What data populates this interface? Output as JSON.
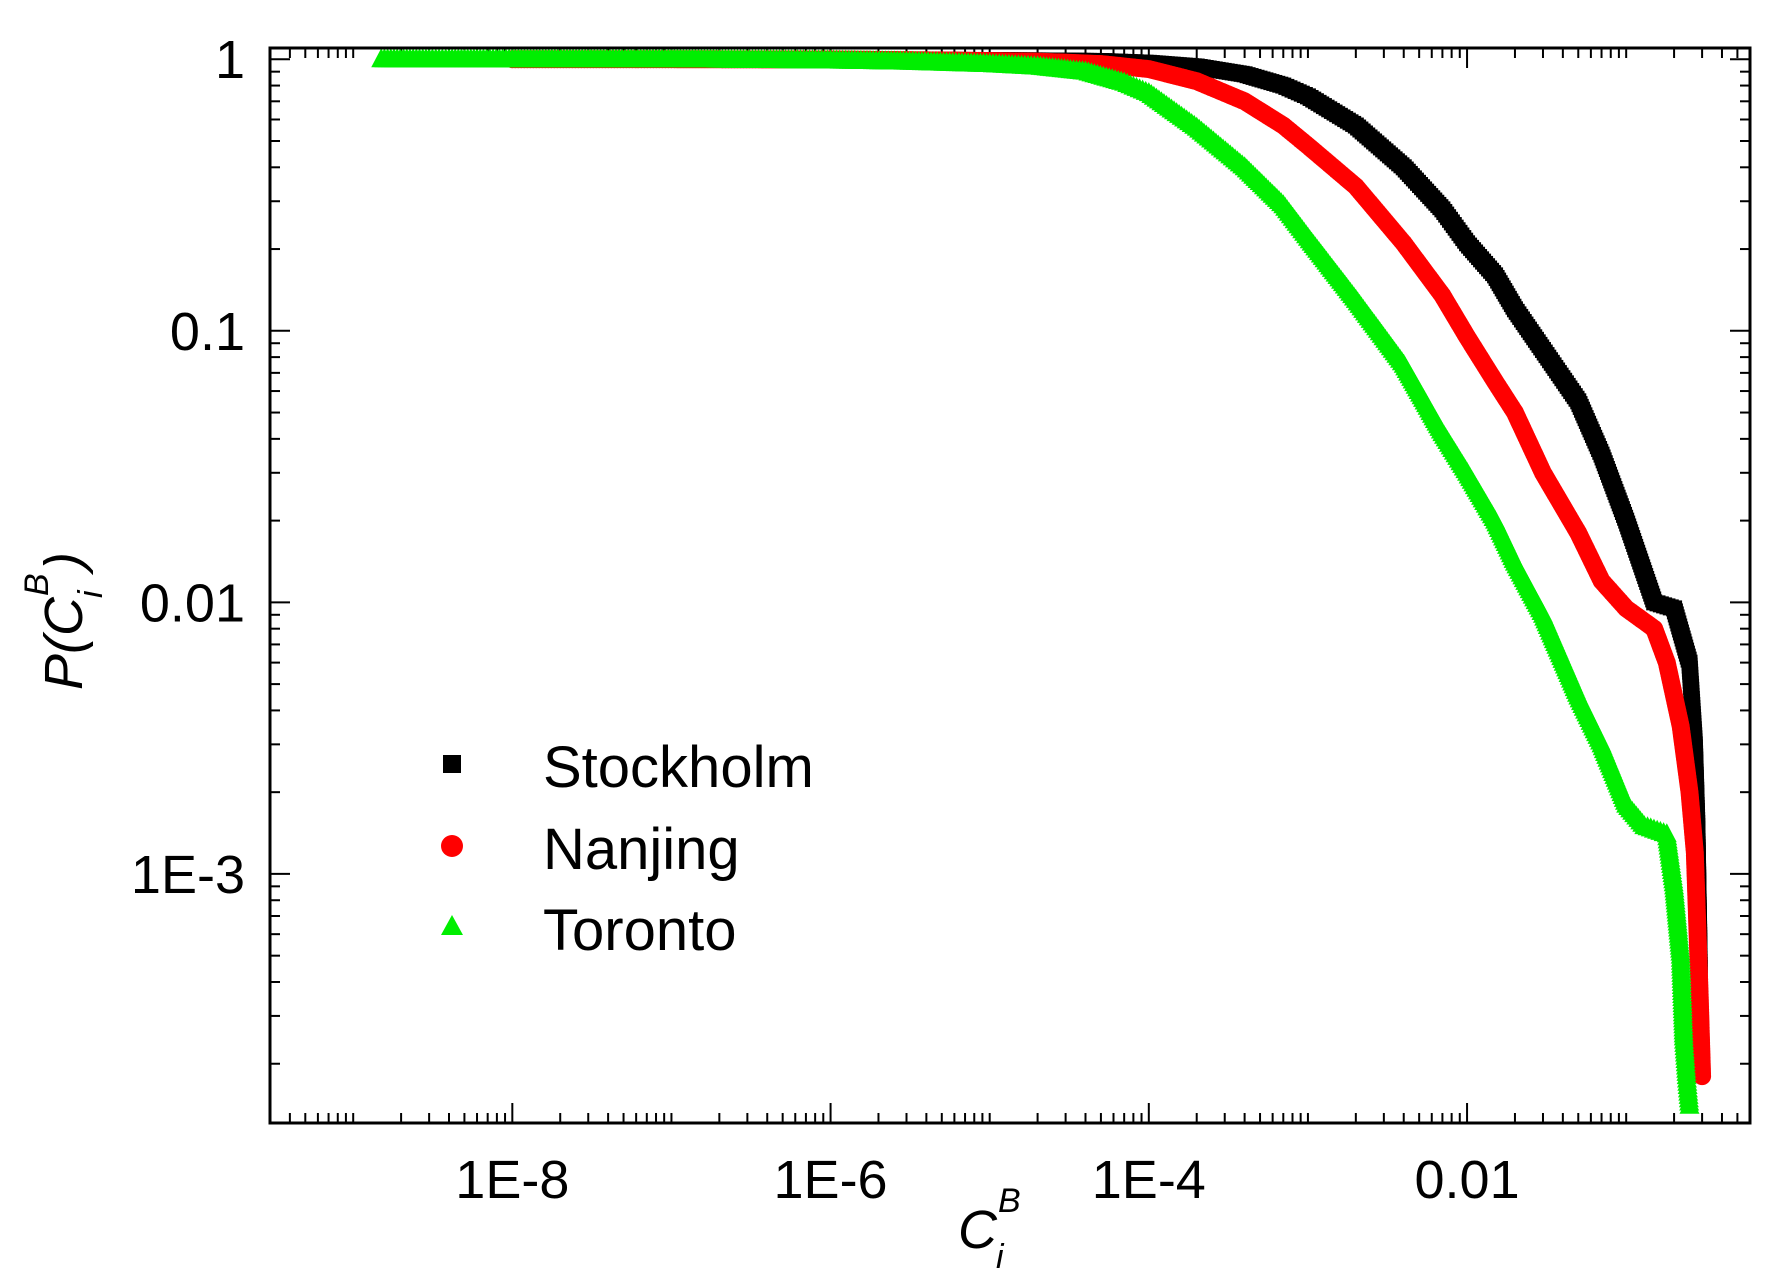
{
  "chart_data": {
    "type": "scatter",
    "xscale": "log",
    "yscale": "log",
    "xlim": [
      3e-10,
      0.6
    ],
    "ylim": [
      0.000121,
      1.1
    ],
    "xticks": [
      {
        "value": 1e-08,
        "label": "1E-8"
      },
      {
        "value": 1e-06,
        "label": "1E-6"
      },
      {
        "value": 0.0001,
        "label": "1E-4"
      },
      {
        "value": 0.01,
        "label": "0.01"
      }
    ],
    "yticks": [
      {
        "value": 1,
        "label": "1"
      },
      {
        "value": 0.1,
        "label": "0.1"
      },
      {
        "value": 0.01,
        "label": "0.01"
      },
      {
        "value": 0.001,
        "label": "1E-3"
      }
    ],
    "xlabel": {
      "main": "C",
      "sup": "B",
      "sub": "i"
    },
    "ylabel": {
      "prefix": "P(",
      "main": "C",
      "sup": "B",
      "sub": "i",
      "suffix": ")"
    },
    "legend_position": "bottom-left",
    "grid": false,
    "series": [
      {
        "name": "Stockholm",
        "color": "#000000",
        "marker": "square",
        "points": [
          [
            4e-08,
            1.0
          ],
          [
            2e-07,
            1.0
          ],
          [
            1e-06,
            0.999
          ],
          [
            5e-06,
            0.995
          ],
          [
            2e-05,
            0.99
          ],
          [
            5e-05,
            0.985
          ],
          [
            0.0001,
            0.97
          ],
          [
            0.0002,
            0.94
          ],
          [
            0.0004,
            0.88
          ],
          [
            0.0007,
            0.8
          ],
          [
            0.001,
            0.73
          ],
          [
            0.002,
            0.57
          ],
          [
            0.004,
            0.4
          ],
          [
            0.007,
            0.28
          ],
          [
            0.01,
            0.21
          ],
          [
            0.015,
            0.16
          ],
          [
            0.02,
            0.12
          ],
          [
            0.03,
            0.085
          ],
          [
            0.05,
            0.055
          ],
          [
            0.07,
            0.035
          ],
          [
            0.1,
            0.02
          ],
          [
            0.15,
            0.01
          ],
          [
            0.2,
            0.0095
          ],
          [
            0.25,
            0.006
          ],
          [
            0.27,
            0.003
          ],
          [
            0.28,
            0.0015
          ],
          [
            0.29,
            0.00045
          ]
        ]
      },
      {
        "name": "Nanjing",
        "color": "#ff0000",
        "marker": "circle",
        "points": [
          [
            1e-08,
            1.0
          ],
          [
            1e-07,
            1.0
          ],
          [
            1e-06,
            0.998
          ],
          [
            5e-06,
            0.99
          ],
          [
            2e-05,
            0.98
          ],
          [
            5e-05,
            0.96
          ],
          [
            0.0001,
            0.92
          ],
          [
            0.0002,
            0.83
          ],
          [
            0.0004,
            0.7
          ],
          [
            0.0007,
            0.57
          ],
          [
            0.001,
            0.48
          ],
          [
            0.002,
            0.34
          ],
          [
            0.004,
            0.21
          ],
          [
            0.007,
            0.135
          ],
          [
            0.01,
            0.095
          ],
          [
            0.015,
            0.065
          ],
          [
            0.02,
            0.05
          ],
          [
            0.03,
            0.03
          ],
          [
            0.05,
            0.018
          ],
          [
            0.07,
            0.012
          ],
          [
            0.1,
            0.0095
          ],
          [
            0.15,
            0.008
          ],
          [
            0.18,
            0.006
          ],
          [
            0.22,
            0.0035
          ],
          [
            0.25,
            0.002
          ],
          [
            0.27,
            0.0012
          ],
          [
            0.29,
            0.00035
          ],
          [
            0.3,
            0.00018
          ]
        ]
      },
      {
        "name": "Toronto",
        "color": "#00ee00",
        "marker": "triangle",
        "points": [
          [
            1.5e-09,
            1.0
          ],
          [
            3e-09,
            1.0
          ],
          [
            4e-09,
            1.0
          ],
          [
            6e-09,
            1.0
          ],
          [
            1e-08,
            1.0
          ],
          [
            3e-08,
            1.0
          ],
          [
            1e-07,
            1.0
          ],
          [
            1e-06,
            0.99
          ],
          [
            3e-06,
            0.98
          ],
          [
            1e-05,
            0.96
          ],
          [
            2e-05,
            0.94
          ],
          [
            4e-05,
            0.9
          ],
          [
            7e-05,
            0.82
          ],
          [
            0.0001,
            0.75
          ],
          [
            0.0002,
            0.56
          ],
          [
            0.0004,
            0.4
          ],
          [
            0.0007,
            0.29
          ],
          [
            0.001,
            0.22
          ],
          [
            0.002,
            0.13
          ],
          [
            0.004,
            0.075
          ],
          [
            0.007,
            0.042
          ],
          [
            0.01,
            0.03
          ],
          [
            0.015,
            0.02
          ],
          [
            0.02,
            0.014
          ],
          [
            0.03,
            0.009
          ],
          [
            0.05,
            0.0045
          ],
          [
            0.07,
            0.003
          ],
          [
            0.1,
            0.0018
          ],
          [
            0.13,
            0.0015
          ],
          [
            0.18,
            0.0014
          ],
          [
            0.2,
            0.0009
          ],
          [
            0.22,
            0.0005
          ],
          [
            0.23,
            0.00025
          ],
          [
            0.24,
            0.00018
          ],
          [
            0.25,
            0.00014
          ]
        ]
      }
    ]
  }
}
